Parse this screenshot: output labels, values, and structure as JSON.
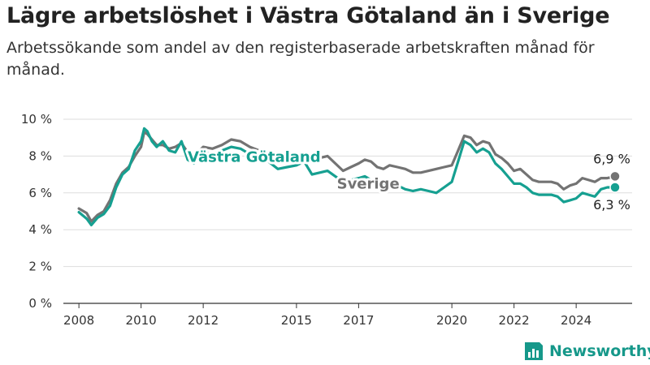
{
  "title": "Lägre arbetslöshet i Västra Götaland än i Sverige",
  "subtitle": "Arbetssökande som andel av den registerbaserade arbetskraften månad för månad.",
  "brand": {
    "name": "Newsworthy",
    "color": "#16988a"
  },
  "colors": {
    "vg": "#16a091",
    "sverige": "#737373",
    "grid": "#dddddd",
    "axis": "#333333"
  },
  "chart_data": {
    "type": "line",
    "title": "Lägre arbetslöshet i Västra Götaland än i Sverige",
    "xlim": [
      2007.5,
      2025.8
    ],
    "ylim": [
      0,
      10
    ],
    "y_ticks": [
      {
        "value": 0,
        "label": "0 %"
      },
      {
        "value": 2,
        "label": "2 %"
      },
      {
        "value": 4,
        "label": "4 %"
      },
      {
        "value": 6,
        "label": "6 %"
      },
      {
        "value": 8,
        "label": "8 %"
      },
      {
        "value": 10,
        "label": "10 %"
      }
    ],
    "x_ticks": [
      {
        "value": 2008,
        "label": "2008"
      },
      {
        "value": 2010,
        "label": "2010"
      },
      {
        "value": 2012,
        "label": "2012"
      },
      {
        "value": 2015,
        "label": "2015"
      },
      {
        "value": 2017,
        "label": "2017"
      },
      {
        "value": 2020,
        "label": "2020"
      },
      {
        "value": 2022,
        "label": "2022"
      },
      {
        "value": 2024,
        "label": "2024"
      }
    ],
    "grid": true,
    "series": [
      {
        "name": "Sverige",
        "color": "#737373",
        "end_label": "6,9 %",
        "label_position": "middle",
        "points": [
          [
            2008.0,
            5.15
          ],
          [
            2008.25,
            4.9
          ],
          [
            2008.4,
            4.45
          ],
          [
            2008.6,
            4.8
          ],
          [
            2008.8,
            5.0
          ],
          [
            2009.0,
            5.6
          ],
          [
            2009.2,
            6.5
          ],
          [
            2009.4,
            7.1
          ],
          [
            2009.6,
            7.4
          ],
          [
            2009.8,
            8.0
          ],
          [
            2010.0,
            8.5
          ],
          [
            2010.1,
            9.3
          ],
          [
            2010.2,
            9.2
          ],
          [
            2010.35,
            8.9
          ],
          [
            2010.5,
            8.6
          ],
          [
            2010.7,
            8.6
          ],
          [
            2010.9,
            8.4
          ],
          [
            2011.1,
            8.5
          ],
          [
            2011.3,
            8.7
          ],
          [
            2011.5,
            8.2
          ],
          [
            2011.7,
            8.0
          ],
          [
            2012.0,
            8.5
          ],
          [
            2012.3,
            8.4
          ],
          [
            2012.6,
            8.6
          ],
          [
            2012.9,
            8.9
          ],
          [
            2013.2,
            8.8
          ],
          [
            2013.5,
            8.5
          ],
          [
            2013.8,
            8.3
          ],
          [
            2014.1,
            8.2
          ],
          [
            2014.4,
            8.0
          ],
          [
            2014.7,
            7.9
          ],
          [
            2015.0,
            7.9
          ],
          [
            2015.25,
            7.9
          ],
          [
            2015.5,
            7.7
          ],
          [
            2015.75,
            7.9
          ],
          [
            2016.0,
            8.0
          ],
          [
            2016.25,
            7.6
          ],
          [
            2016.5,
            7.2
          ],
          [
            2016.75,
            7.4
          ],
          [
            2017.0,
            7.6
          ],
          [
            2017.2,
            7.8
          ],
          [
            2017.4,
            7.7
          ],
          [
            2017.6,
            7.4
          ],
          [
            2017.8,
            7.3
          ],
          [
            2018.0,
            7.5
          ],
          [
            2018.25,
            7.4
          ],
          [
            2018.5,
            7.3
          ],
          [
            2018.75,
            7.1
          ],
          [
            2019.0,
            7.1
          ],
          [
            2019.25,
            7.2
          ],
          [
            2019.5,
            7.3
          ],
          [
            2019.75,
            7.4
          ],
          [
            2020.0,
            7.5
          ],
          [
            2020.2,
            8.3
          ],
          [
            2020.4,
            9.1
          ],
          [
            2020.6,
            9.0
          ],
          [
            2020.8,
            8.6
          ],
          [
            2021.0,
            8.8
          ],
          [
            2021.2,
            8.7
          ],
          [
            2021.4,
            8.1
          ],
          [
            2021.6,
            7.9
          ],
          [
            2021.8,
            7.6
          ],
          [
            2022.0,
            7.2
          ],
          [
            2022.2,
            7.3
          ],
          [
            2022.4,
            7.0
          ],
          [
            2022.6,
            6.7
          ],
          [
            2022.8,
            6.6
          ],
          [
            2023.0,
            6.6
          ],
          [
            2023.2,
            6.6
          ],
          [
            2023.4,
            6.5
          ],
          [
            2023.6,
            6.2
          ],
          [
            2023.8,
            6.4
          ],
          [
            2024.0,
            6.5
          ],
          [
            2024.2,
            6.8
          ],
          [
            2024.4,
            6.7
          ],
          [
            2024.6,
            6.6
          ],
          [
            2024.8,
            6.8
          ],
          [
            2025.0,
            6.8
          ],
          [
            2025.25,
            6.9
          ]
        ]
      },
      {
        "name": "Västra Götaland",
        "color": "#16a091",
        "end_label": "6,3 %",
        "label_position": "middle",
        "points": [
          [
            2008.0,
            4.95
          ],
          [
            2008.25,
            4.6
          ],
          [
            2008.4,
            4.25
          ],
          [
            2008.6,
            4.65
          ],
          [
            2008.8,
            4.85
          ],
          [
            2009.0,
            5.3
          ],
          [
            2009.2,
            6.3
          ],
          [
            2009.4,
            7.0
          ],
          [
            2009.6,
            7.3
          ],
          [
            2009.8,
            8.3
          ],
          [
            2010.0,
            8.8
          ],
          [
            2010.1,
            9.5
          ],
          [
            2010.2,
            9.35
          ],
          [
            2010.35,
            8.8
          ],
          [
            2010.5,
            8.5
          ],
          [
            2010.7,
            8.8
          ],
          [
            2010.9,
            8.3
          ],
          [
            2011.1,
            8.2
          ],
          [
            2011.3,
            8.8
          ],
          [
            2011.5,
            7.8
          ],
          [
            2011.7,
            7.6
          ],
          [
            2012.0,
            8.2
          ],
          [
            2012.3,
            8.1
          ],
          [
            2012.6,
            8.3
          ],
          [
            2012.9,
            8.5
          ],
          [
            2013.2,
            8.4
          ],
          [
            2013.5,
            8.1
          ],
          [
            2013.8,
            7.9
          ],
          [
            2014.1,
            7.7
          ],
          [
            2014.4,
            7.3
          ],
          [
            2014.7,
            7.4
          ],
          [
            2015.0,
            7.5
          ],
          [
            2015.25,
            7.7
          ],
          [
            2015.5,
            7.0
          ],
          [
            2015.75,
            7.1
          ],
          [
            2016.0,
            7.2
          ],
          [
            2016.25,
            6.9
          ],
          [
            2016.5,
            6.6
          ],
          [
            2016.75,
            6.7
          ],
          [
            2017.0,
            6.8
          ],
          [
            2017.2,
            6.9
          ],
          [
            2017.4,
            6.7
          ],
          [
            2017.6,
            6.4
          ],
          [
            2017.8,
            6.5
          ],
          [
            2018.0,
            6.6
          ],
          [
            2018.25,
            6.4
          ],
          [
            2018.5,
            6.2
          ],
          [
            2018.75,
            6.1
          ],
          [
            2019.0,
            6.2
          ],
          [
            2019.25,
            6.1
          ],
          [
            2019.5,
            6.0
          ],
          [
            2019.75,
            6.3
          ],
          [
            2020.0,
            6.6
          ],
          [
            2020.2,
            7.7
          ],
          [
            2020.4,
            8.8
          ],
          [
            2020.6,
            8.6
          ],
          [
            2020.8,
            8.2
          ],
          [
            2021.0,
            8.4
          ],
          [
            2021.2,
            8.2
          ],
          [
            2021.4,
            7.6
          ],
          [
            2021.6,
            7.3
          ],
          [
            2021.8,
            6.9
          ],
          [
            2022.0,
            6.5
          ],
          [
            2022.2,
            6.5
          ],
          [
            2022.4,
            6.3
          ],
          [
            2022.6,
            6.0
          ],
          [
            2022.8,
            5.9
          ],
          [
            2023.0,
            5.9
          ],
          [
            2023.2,
            5.9
          ],
          [
            2023.4,
            5.8
          ],
          [
            2023.6,
            5.5
          ],
          [
            2023.8,
            5.6
          ],
          [
            2024.0,
            5.7
          ],
          [
            2024.2,
            6.0
          ],
          [
            2024.4,
            5.9
          ],
          [
            2024.6,
            5.8
          ],
          [
            2024.8,
            6.2
          ],
          [
            2025.0,
            6.3
          ],
          [
            2025.25,
            6.3
          ]
        ]
      }
    ]
  }
}
